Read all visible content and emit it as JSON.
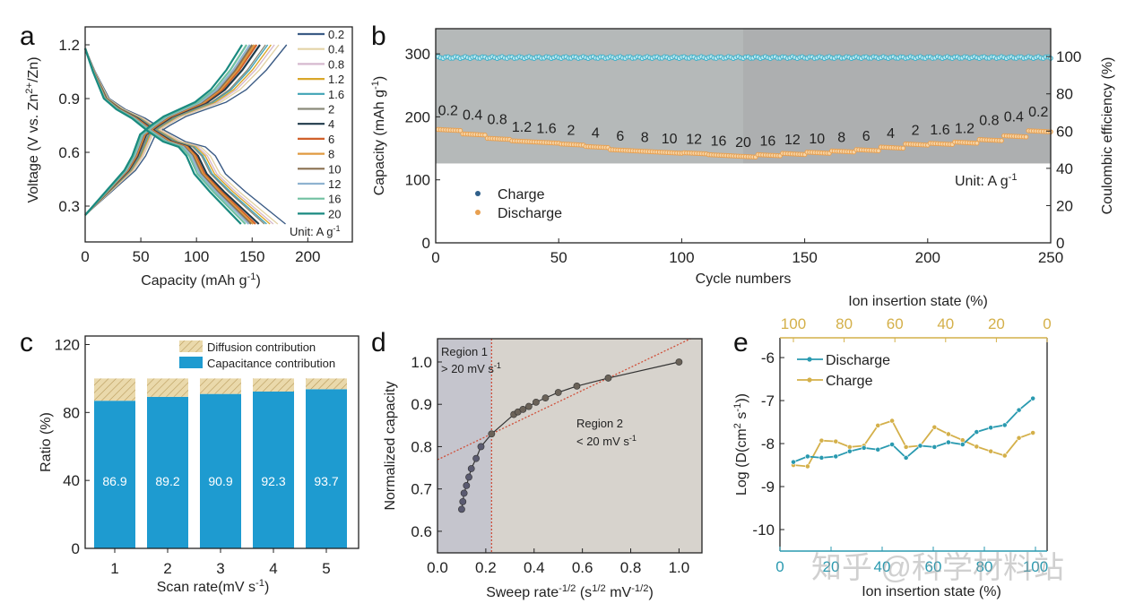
{
  "watermark": "知乎 @科学材料站",
  "chart_data": [
    {
      "panel": "a",
      "type": "line",
      "xlabel": "Capacity (mAh g^{-1})",
      "ylabel": "Voltage (V vs. Zn^{2+}/Zn)",
      "xlim": [
        0,
        240
      ],
      "ylim": [
        0.1,
        1.3
      ],
      "xticks": [
        0,
        50,
        100,
        150,
        200
      ],
      "yticks": [
        0.3,
        0.6,
        0.9,
        1.2
      ],
      "unit_note": "Unit:  A g^{-1}",
      "discharge_profile": [
        [
          0,
          1.18
        ],
        [
          0.05,
          1.05
        ],
        [
          0.12,
          0.9
        ],
        [
          0.2,
          0.84
        ],
        [
          0.3,
          0.79
        ],
        [
          0.4,
          0.72
        ],
        [
          0.5,
          0.66
        ],
        [
          0.6,
          0.63
        ],
        [
          0.65,
          0.58
        ],
        [
          0.7,
          0.48
        ],
        [
          0.8,
          0.38
        ],
        [
          0.9,
          0.29
        ],
        [
          1,
          0.2
        ]
      ],
      "charge_profile": [
        [
          0,
          0.25
        ],
        [
          0.05,
          0.3
        ],
        [
          0.15,
          0.4
        ],
        [
          0.25,
          0.5
        ],
        [
          0.3,
          0.58
        ],
        [
          0.35,
          0.7
        ],
        [
          0.42,
          0.75
        ],
        [
          0.5,
          0.8
        ],
        [
          0.6,
          0.84
        ],
        [
          0.7,
          0.88
        ],
        [
          0.8,
          0.95
        ],
        [
          0.9,
          1.06
        ],
        [
          1,
          1.2
        ]
      ],
      "series": [
        {
          "name": "0.2",
          "color": "#3b5b85",
          "max_capacity": 180
        },
        {
          "name": "0.4",
          "color": "#e3d3a6",
          "max_capacity": 173
        },
        {
          "name": "0.8",
          "color": "#d6b9cf",
          "max_capacity": 169
        },
        {
          "name": "1.2",
          "color": "#d9a72a",
          "max_capacity": 166
        },
        {
          "name": "1.6",
          "color": "#3fa3b5",
          "max_capacity": 163
        },
        {
          "name": "2",
          "color": "#8a8a7a",
          "max_capacity": 161
        },
        {
          "name": "4",
          "color": "#1f3a4a",
          "max_capacity": 156
        },
        {
          "name": "6",
          "color": "#d0602a",
          "max_capacity": 153
        },
        {
          "name": "8",
          "color": "#e09a40",
          "max_capacity": 151
        },
        {
          "name": "10",
          "color": "#8a7050",
          "max_capacity": 149
        },
        {
          "name": "12",
          "color": "#8fb3d0",
          "max_capacity": 147
        },
        {
          "name": "16",
          "color": "#70c0a0",
          "max_capacity": 144
        },
        {
          "name": "20",
          "color": "#1a8a80",
          "max_capacity": 140
        }
      ]
    },
    {
      "panel": "b",
      "type": "scatter",
      "xlabel": "Cycle numbers",
      "ylabel": "Capacity (mAh g^{-1})",
      "ylabel_right": "Coulombic efficiency (%)",
      "xlim": [
        0,
        250
      ],
      "ylim": [
        0,
        340
      ],
      "ylim_right": [
        0,
        115
      ],
      "xticks": [
        0,
        50,
        100,
        150,
        200,
        250
      ],
      "yticks": [
        0,
        100,
        200,
        300
      ],
      "yticks_right": [
        0,
        20,
        40,
        60,
        80,
        100
      ],
      "unit_note": "Unit:  A g^{-1}",
      "legend": [
        {
          "name": "Charge",
          "color": "#2f5f8a"
        },
        {
          "name": "Discharge",
          "color": "#e8a050"
        }
      ],
      "ce_color": "#3fb0c8",
      "capacity_color": "#e8a050",
      "cycles_per_step": 10,
      "rates": [
        "0.2",
        "0.4",
        "0.8",
        "1.2",
        "1.6",
        "2",
        "4",
        "6",
        "8",
        "10",
        "12",
        "16",
        "20",
        "16",
        "12",
        "10",
        "8",
        "6",
        "4",
        "2",
        "1.6",
        "1.2",
        "0.8",
        "0.4",
        "0.2"
      ],
      "capacity_per_step": [
        180,
        173,
        166,
        162,
        160,
        157,
        153,
        148,
        146,
        144,
        143,
        140,
        138,
        140,
        142,
        144,
        146,
        148,
        152,
        157,
        158,
        160,
        164,
        170,
        178
      ],
      "coulombic_efficiency": 99.5
    },
    {
      "panel": "c",
      "type": "bar",
      "xlabel": "Scan rate(mV s^{-1})",
      "ylabel": "Ratio (%)",
      "categories": [
        "1",
        "2",
        "3",
        "4",
        "5"
      ],
      "ylim": [
        0,
        125
      ],
      "yticks": [
        0,
        40,
        80,
        120
      ],
      "series": [
        {
          "name": "Capacitance contribution",
          "color": "#1e9bd0",
          "values": [
            86.9,
            89.2,
            90.9,
            92.3,
            93.7
          ]
        },
        {
          "name": "Diffusion contribution",
          "color": "#e7d6a8",
          "values": [
            13.1,
            10.8,
            9.1,
            7.7,
            6.3
          ]
        }
      ],
      "value_labels": [
        "86.9",
        "89.2",
        "90.9",
        "92.3",
        "93.7"
      ]
    },
    {
      "panel": "d",
      "type": "scatter",
      "xlabel": "Sweep rate^{-1/2} (s^{1/2} mV^{-1/2})",
      "ylabel": "Normalized capacity",
      "xlim": [
        0,
        1.095
      ],
      "ylim": [
        0.549,
        1.055
      ],
      "xticks": [
        0.0,
        0.2,
        0.4,
        0.6,
        0.8,
        1.0
      ],
      "yticks": [
        0.6,
        0.7,
        0.8,
        0.9,
        1.0
      ],
      "x": [
        0.1,
        0.105,
        0.11,
        0.12,
        0.13,
        0.14,
        0.16,
        0.18,
        0.224,
        0.316,
        0.333,
        0.354,
        0.378,
        0.408,
        0.447,
        0.5,
        0.577,
        0.707,
        1.0
      ],
      "y": [
        0.652,
        0.67,
        0.69,
        0.708,
        0.728,
        0.748,
        0.772,
        0.8,
        0.83,
        0.876,
        0.882,
        0.888,
        0.895,
        0.905,
        0.915,
        0.928,
        0.943,
        0.962,
        1.0
      ],
      "boundary_x": 0.224,
      "fit_line": {
        "slope": 0.273,
        "intercept": 0.769
      },
      "region1": [
        "Region 1",
        "> 20 mV s^{-1}"
      ],
      "region2": [
        "Region 2",
        "< 20 mV s^{-1}"
      ]
    },
    {
      "panel": "e",
      "type": "line",
      "xlabel": "Ion insertion state (%)",
      "xlabel_top": "Ion insertion state (%)",
      "ylabel": "Log (D(cm^{2} s^{-1}))",
      "xlim_top": [
        105.3,
        0
      ],
      "xticks_top": [
        100,
        80,
        60,
        40,
        20,
        0
      ],
      "xlim_bottom": [
        0,
        100
      ],
      "xticks_bottom": [
        0,
        20,
        40,
        60,
        80,
        100
      ],
      "ylim": [
        -10.5,
        -5.54
      ],
      "yticks": [
        -6,
        -7,
        -8,
        -9,
        -10
      ],
      "x": [
        100,
        94.4,
        88.9,
        83.3,
        77.8,
        72.2,
        66.7,
        61.1,
        55.6,
        50,
        44.4,
        38.9,
        33.3,
        27.8,
        22.2,
        16.7,
        11.1,
        5.6
      ],
      "series": [
        {
          "name": "Discharge",
          "color": "#2a9ab0",
          "values": [
            -8.43,
            -8.3,
            -8.33,
            -8.3,
            -8.18,
            -8.1,
            -8.14,
            -8.02,
            -8.33,
            -8.05,
            -8.08,
            -7.97,
            -8.02,
            -7.73,
            -7.63,
            -7.57,
            -7.22,
            -6.95
          ]
        },
        {
          "name": "Charge",
          "color": "#d4b04a",
          "values": [
            -8.5,
            -8.53,
            -7.93,
            -7.95,
            -8.08,
            -8.05,
            -7.58,
            -7.47,
            -8.08,
            -8.05,
            -7.62,
            -7.78,
            -7.92,
            -8.07,
            -8.18,
            -8.28,
            -7.87,
            -7.75
          ]
        }
      ]
    }
  ],
  "panel_letters": [
    "a",
    "b",
    "c",
    "d",
    "e"
  ]
}
